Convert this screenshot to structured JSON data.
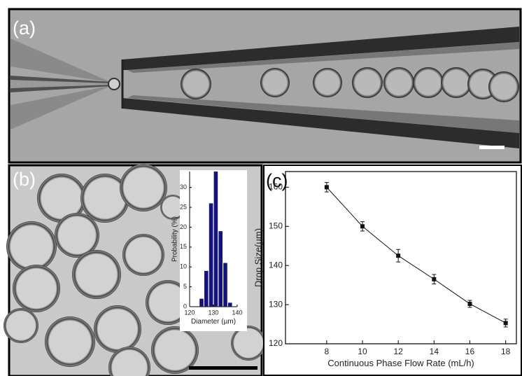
{
  "panel_labels": [
    "(a)",
    "(b)",
    "(c)"
  ],
  "chart_data": [
    {
      "type": "histogram",
      "xlabel": "Diameter (µm)",
      "ylabel": "Probability (%)",
      "bins": [
        124,
        126,
        128,
        130,
        132,
        134,
        136,
        138
      ],
      "values": [
        2,
        9,
        26,
        34,
        19,
        11,
        1
      ],
      "color": "#14147a",
      "xlim": [
        120,
        140
      ],
      "xticks": [
        120,
        130,
        140
      ],
      "ylim": [
        0,
        34
      ],
      "yticks": [
        0,
        5,
        10,
        15,
        20,
        25,
        30
      ]
    },
    {
      "type": "line",
      "xlabel": "Continuous Phase Flow Rate (mL/h)",
      "ylabel": "Drop Size(µm)",
      "x": [
        8,
        10,
        12,
        14,
        16,
        18
      ],
      "values": [
        160,
        150,
        142.5,
        136.5,
        130.2,
        125.3
      ],
      "errors": [
        1.2,
        1.2,
        1.6,
        1.2,
        0.9,
        1.0
      ],
      "color": "#111111",
      "xlim": [
        5.7,
        18.6
      ],
      "xticks": [
        8,
        10,
        12,
        14,
        16,
        18
      ],
      "ylim": [
        120,
        164
      ],
      "yticks": [
        120,
        130,
        140,
        150,
        160
      ]
    }
  ]
}
